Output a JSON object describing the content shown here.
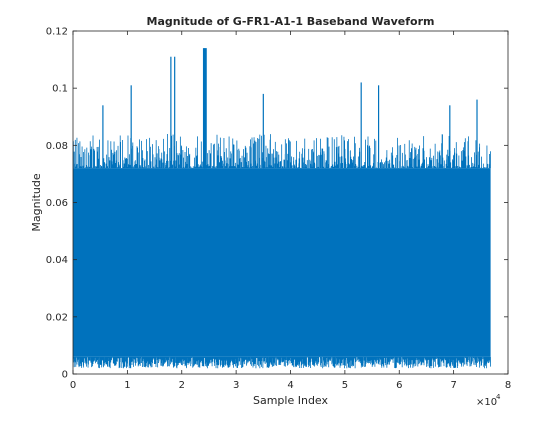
{
  "chart_data": {
    "type": "line",
    "title": "Magnitude of G-FR1-A1-1 Baseband Waveform",
    "xlabel": "Sample Index",
    "ylabel": "Magnitude",
    "xlim": [
      0,
      80000
    ],
    "ylim": [
      0,
      0.12
    ],
    "x_ticks": [
      0,
      1,
      2,
      3,
      4,
      5,
      6,
      7,
      8
    ],
    "x_tick_labels": [
      "0",
      "1",
      "2",
      "3",
      "4",
      "5",
      "6",
      "7",
      "8"
    ],
    "x_exponent_base": "×10",
    "x_exponent_power": "4",
    "y_ticks": [
      0,
      0.02,
      0.04,
      0.06,
      0.08,
      0.1,
      0.12
    ],
    "y_tick_labels": [
      "0",
      "0.02",
      "0.04",
      "0.06",
      "0.08",
      "0.1",
      "0.12"
    ],
    "grid": false,
    "legend": "none",
    "series": [
      {
        "color": "#0072bd",
        "x_range": [
          0,
          76800
        ],
        "envelope": {
          "dense_band": [
            0.006,
            0.072
          ],
          "typical_peak": 0.08,
          "typical_floor": 0.002
        },
        "notable_peaks": [
          {
            "x": 5500,
            "y": 0.094
          },
          {
            "x": 10700,
            "y": 0.101
          },
          {
            "x": 18000,
            "y": 0.111
          },
          {
            "x": 18700,
            "y": 0.111
          },
          {
            "x": 24100,
            "y": 0.114
          },
          {
            "x": 24400,
            "y": 0.114
          },
          {
            "x": 35000,
            "y": 0.098
          },
          {
            "x": 53000,
            "y": 0.102
          },
          {
            "x": 56200,
            "y": 0.101
          },
          {
            "x": 69300,
            "y": 0.094
          },
          {
            "x": 74300,
            "y": 0.096
          }
        ]
      }
    ]
  }
}
